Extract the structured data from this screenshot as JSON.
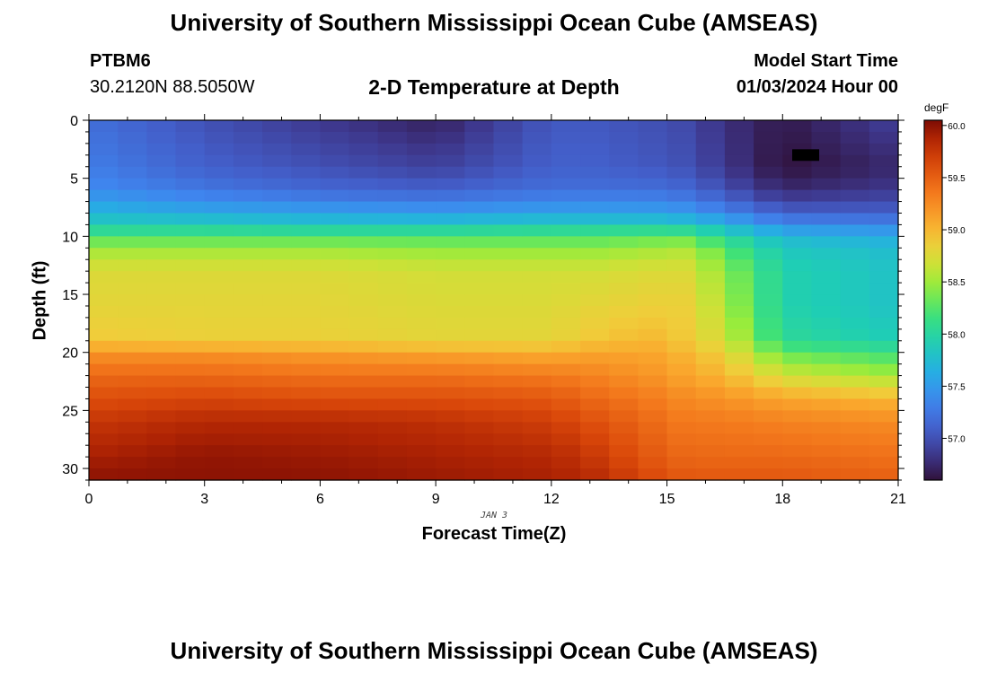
{
  "page": {
    "title": "University of Southern Mississippi Ocean Cube (AMSEAS)",
    "title_repeat": "University of Southern Mississippi Ocean Cube (AMSEAS)",
    "station_id": "PTBM6",
    "coords": "30.2120N  88.5050W",
    "model_start_label": "Model Start Time",
    "model_start_value": "01/03/2024 Hour 00"
  },
  "chart_data": {
    "type": "heatmap",
    "title": "2-D Temperature at Depth",
    "xlabel": "Forecast Time(Z)",
    "ylabel": "Depth (ft)",
    "date_label": "JAN 3",
    "xlim": [
      0,
      21
    ],
    "ylim": [
      31,
      0
    ],
    "x_ticks": [
      0,
      3,
      6,
      9,
      12,
      15,
      18,
      21
    ],
    "y_ticks": [
      0,
      5,
      10,
      15,
      20,
      25,
      30
    ],
    "colorbar": {
      "unit": "degF",
      "range": [
        56.6,
        60.05
      ],
      "ticks": [
        "57.0",
        "57.5",
        "58.0",
        "58.5",
        "59.0",
        "59.5",
        "60.0"
      ]
    },
    "grid_step_hours": 0.75,
    "grid_step_depth_ft": 1,
    "depth_profiles": [
      {
        "hour": 0,
        "depths": [
          0,
          4,
          6,
          8,
          9,
          10,
          11,
          13,
          16,
          19,
          20,
          22,
          24,
          26,
          29,
          31
        ],
        "values": [
          57.2,
          57.3,
          57.4,
          57.7,
          57.9,
          58.2,
          58.5,
          58.75,
          58.8,
          58.9,
          59.2,
          59.45,
          59.6,
          59.75,
          59.9,
          60.0
        ]
      },
      {
        "hour": 3,
        "depths": [
          0,
          4,
          6,
          8,
          9,
          10,
          11,
          13,
          16,
          19,
          20,
          22,
          24,
          26,
          29,
          31
        ],
        "values": [
          57.0,
          57.1,
          57.25,
          57.6,
          57.9,
          58.2,
          58.5,
          58.75,
          58.8,
          58.85,
          59.2,
          59.45,
          59.65,
          59.85,
          59.98,
          60.0
        ]
      },
      {
        "hour": 6,
        "depths": [
          0,
          4,
          6,
          8,
          9,
          10,
          11,
          13,
          16,
          19,
          20,
          22,
          24,
          26,
          29,
          31
        ],
        "values": [
          56.85,
          57.0,
          57.15,
          57.55,
          57.85,
          58.2,
          58.5,
          58.75,
          58.8,
          58.85,
          59.15,
          59.4,
          59.6,
          59.85,
          59.95,
          60.0
        ]
      },
      {
        "hour": 9,
        "depths": [
          0,
          4,
          6,
          8,
          9,
          10,
          11,
          13,
          16,
          19,
          20,
          22,
          24,
          26,
          29,
          31
        ],
        "values": [
          56.7,
          56.9,
          57.1,
          57.5,
          57.85,
          58.2,
          58.45,
          58.7,
          58.75,
          58.8,
          59.1,
          59.4,
          59.6,
          59.8,
          59.9,
          59.95
        ]
      },
      {
        "hour": 12,
        "depths": [
          0,
          4,
          6,
          8,
          9,
          10,
          11,
          13,
          16,
          19,
          20,
          22,
          24,
          26,
          29,
          31
        ],
        "values": [
          57.05,
          57.1,
          57.2,
          57.55,
          57.9,
          58.2,
          58.45,
          58.7,
          58.75,
          58.8,
          59.05,
          59.35,
          59.55,
          59.7,
          59.85,
          59.9
        ]
      },
      {
        "hour": 13,
        "depths": [
          0,
          4,
          6,
          8,
          9,
          10,
          11,
          13,
          16,
          19,
          20,
          22,
          24,
          26,
          29,
          31
        ],
        "values": [
          57.05,
          57.1,
          57.2,
          57.55,
          57.9,
          58.2,
          58.45,
          58.7,
          58.8,
          58.9,
          59.1,
          59.3,
          59.45,
          59.6,
          59.75,
          59.85
        ]
      },
      {
        "hour": 14.5,
        "depths": [
          0,
          4,
          6,
          8,
          9,
          10,
          11,
          13,
          16,
          19,
          20,
          22,
          24,
          26,
          29,
          31
        ],
        "values": [
          57.0,
          57.05,
          57.2,
          57.55,
          57.9,
          58.25,
          58.5,
          58.75,
          58.85,
          59.0,
          59.1,
          59.2,
          59.35,
          59.45,
          59.55,
          59.65
        ]
      },
      {
        "hour": 15.5,
        "depths": [
          0,
          4,
          6,
          8,
          9,
          10,
          11,
          13,
          16,
          19,
          20,
          22,
          24,
          26,
          29,
          31
        ],
        "values": [
          56.95,
          57.0,
          57.15,
          57.5,
          57.85,
          58.25,
          58.55,
          58.75,
          58.85,
          58.9,
          59.0,
          59.1,
          59.25,
          59.35,
          59.45,
          59.55
        ]
      },
      {
        "hour": 16.5,
        "depths": [
          0,
          4,
          6,
          8,
          9,
          10,
          11,
          13,
          16,
          19,
          20,
          22,
          24,
          26,
          29,
          31
        ],
        "values": [
          56.8,
          56.85,
          57.0,
          57.35,
          57.7,
          58.0,
          58.25,
          58.45,
          58.55,
          58.7,
          58.85,
          59.0,
          59.2,
          59.35,
          59.45,
          59.55
        ]
      },
      {
        "hour": 18,
        "depths": [
          0,
          4,
          6,
          8,
          9,
          10,
          11,
          13,
          16,
          19,
          20,
          22,
          24,
          26,
          29,
          31
        ],
        "values": [
          56.65,
          56.6,
          56.75,
          57.1,
          57.4,
          57.7,
          57.85,
          57.95,
          57.95,
          58.05,
          58.3,
          58.7,
          59.1,
          59.3,
          59.45,
          59.55
        ]
      },
      {
        "hour": 21,
        "depths": [
          0,
          4,
          6,
          8,
          9,
          10,
          11,
          13,
          16,
          19,
          20,
          22,
          24,
          26,
          29,
          31
        ],
        "values": [
          56.9,
          56.75,
          56.85,
          57.1,
          57.35,
          57.6,
          57.75,
          57.8,
          57.8,
          57.9,
          58.15,
          58.5,
          59.0,
          59.25,
          59.4,
          59.5
        ]
      }
    ],
    "missing_cells": [
      {
        "hour": 18.6,
        "depth": 3
      }
    ]
  }
}
